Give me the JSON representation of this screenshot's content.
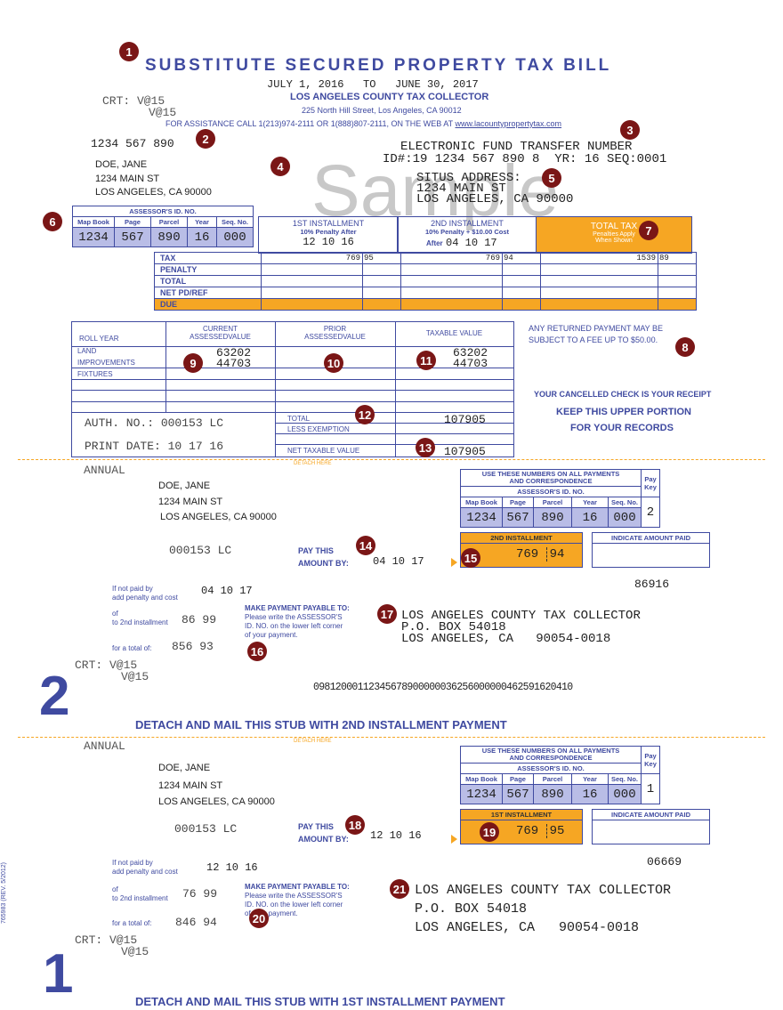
{
  "header": {
    "title": "SUBSTITUTE SECURED PROPERTY TAX BILL",
    "date_range": "JULY 1, 2016   TO   JUNE 30, 2017",
    "collector": "LOS ANGELES COUNTY TAX COLLECTOR",
    "address": "225 North Hill Street, Los Angeles, CA 90012",
    "assistance": "FOR ASSISTANCE CALL 1(213)974-2111 OR 1(888)807-2111, ON THE WEB AT",
    "website": "www.lacountypropertytax.com",
    "crt1": "CRT: V@15",
    "crt2": "V@15",
    "account": "1234 567 890",
    "watermark": "Sample"
  },
  "owner": {
    "name": "DOE, JANE",
    "street": "1234 MAIN ST",
    "city": "LOS ANGELES, CA 90000"
  },
  "eft": {
    "title": "ELECTRONIC FUND TRANSFER NUMBER",
    "id": "ID#:19 1234 567 890 8  YR: 16 SEQ:0001"
  },
  "situs": {
    "label": "SITUS ADDRESS:",
    "street": "1234 MAIN ST",
    "city": "LOS ANGELES, CA 90000"
  },
  "ain": {
    "header": "ASSESSOR'S ID. NO.",
    "cols": [
      "Map Book",
      "Page",
      "Parcel",
      "Year",
      "Seq. No."
    ],
    "values": [
      "1234",
      "567",
      "890",
      "16",
      "000"
    ]
  },
  "installments": {
    "first": {
      "label": "1ST INSTALLMENT",
      "note": "10% Penalty After",
      "date": "12 10 16"
    },
    "second": {
      "label": "2ND INSTALLMENT",
      "note": "10% Penalty + $10.00 Cost",
      "after": "After",
      "date": "04 10 17"
    },
    "total": {
      "label": "TOTAL TAX",
      "note1": "Penalties Apply",
      "note2": "When Shown"
    }
  },
  "tax_rows": [
    "TAX",
    "PENALTY",
    "TOTAL",
    "NET PD/REF",
    "DUE"
  ],
  "tax_values": {
    "first": [
      "769",
      "95"
    ],
    "second": [
      "769",
      "94"
    ],
    "total": [
      "1539",
      "89"
    ]
  },
  "values": {
    "h_current": "CURRENT",
    "h_current2": "ASSESSEDVALUE",
    "h_prior": "PRIOR",
    "h_prior2": "ASSESSEDVALUE",
    "h_taxable": "TAXABLE VALUE",
    "roll_year": "ROLL YEAR",
    "rows": [
      "LAND",
      "IMPROVEMENTS",
      "FIXTURES"
    ],
    "land": "63202",
    "improvements": "44703",
    "auth": "AUTH. NO.: 000153 LC",
    "print_date": "PRINT DATE: 10 17 16",
    "total_label": "TOTAL",
    "less_ex": "LESS EXEMPTION",
    "net_label": "NET TAXABLE VALUE",
    "total": "107905",
    "net": "107905"
  },
  "notes": {
    "returned1": "ANY RETURNED PAYMENT MAY BE",
    "returned2": "SUBJECT TO A FEE UP TO $50.00.",
    "receipt": "YOUR CANCELLED CHECK IS YOUR RECEIPT",
    "keep1": "KEEP THIS UPPER PORTION",
    "keep2": "FOR YOUR RECORDS",
    "detach": "DETACH HERE"
  },
  "stub": {
    "annual": "ANNUAL",
    "use_numbers1": "USE THESE NUMBERS ON ALL PAYMENTS",
    "use_numbers2": "AND CORRESPONDENCE",
    "paykey_label": "Pay Key",
    "indicate": "INDICATE AMOUNT PAID",
    "lc": "000153 LC",
    "pay_this": "PAY THIS",
    "amount_by": "AMOUNT BY:",
    "if_not": "If not paid by",
    "add_pen": "add penalty and cost",
    "of": "of",
    "to_2nd": "to 2nd installment",
    "for_total": "for a total of:",
    "payable1": "MAKE PAYMENT PAYABLE TO:",
    "payable2": "Please write the ASSESSOR'S",
    "payable3": "ID. NO. on the lower left corner",
    "payable4": "of your payment.",
    "addr1": "LOS ANGELES COUNTY TAX COLLECTOR",
    "addr2": "P.O. BOX 54018",
    "addr3": "LOS ANGELES, CA   90054-0018",
    "rev": "765983 (REV. 5/2012)"
  },
  "stub2": {
    "label": "2ND INSTALLMENT",
    "paykey": "2",
    "amount": "769",
    "cents": "94",
    "date": "04 10 17",
    "code": "86916",
    "penalty": "86 99",
    "total": "856 93",
    "big": "2",
    "barcode": "09812000112345678900000036256000000462591620410",
    "detach": "DETACH AND MAIL THIS STUB WITH 2ND INSTALLMENT PAYMENT"
  },
  "stub1": {
    "label": "1ST INSTALLMENT",
    "paykey": "1",
    "amount": "769",
    "cents": "95",
    "date": "12 10 16",
    "code": "06669",
    "penalty": "76 99",
    "total": "846 94",
    "big": "1",
    "detach": "DETACH AND MAIL THIS STUB WITH 1ST INSTALLMENT PAYMENT"
  },
  "badges": [
    "1",
    "2",
    "3",
    "4",
    "5",
    "6",
    "7",
    "8",
    "9",
    "10",
    "11",
    "12",
    "13",
    "14",
    "15",
    "16",
    "17",
    "18",
    "19",
    "20",
    "21"
  ]
}
